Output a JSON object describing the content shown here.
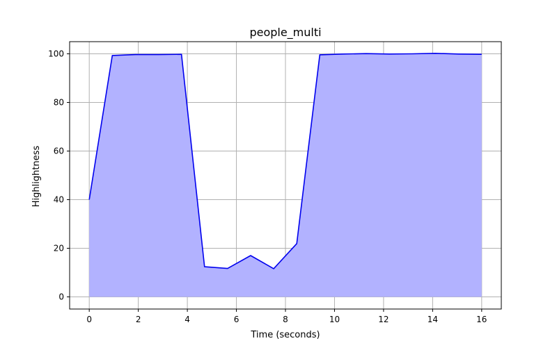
{
  "chart_data": {
    "type": "area",
    "title": "people_multi",
    "xlabel": "Time (seconds)",
    "ylabel": "Highlightness",
    "xlim": [
      -0.8,
      16.8
    ],
    "ylim": [
      -5,
      105
    ],
    "xticks": [
      0,
      2,
      4,
      6,
      8,
      10,
      12,
      14,
      16
    ],
    "yticks": [
      0,
      20,
      40,
      60,
      80,
      100
    ],
    "grid": true,
    "legend": "none",
    "line_color": "#0000ee",
    "fill_color": "#b2b2ff",
    "grid_color": "#b0b0b0",
    "series": [
      {
        "x": [
          0,
          0.94,
          1.88,
          2.82,
          3.76,
          4.7,
          5.64,
          6.58,
          7.52,
          8.46,
          9.4,
          10.34,
          11.29,
          12.23,
          13.17,
          14.11,
          15.05,
          16
        ],
        "values": [
          40,
          99.3,
          99.7,
          99.7,
          99.8,
          12.4,
          11.7,
          17.0,
          11.6,
          21.9,
          99.6,
          99.9,
          100.1,
          99.9,
          100.0,
          100.2,
          99.9,
          99.8
        ]
      }
    ]
  }
}
